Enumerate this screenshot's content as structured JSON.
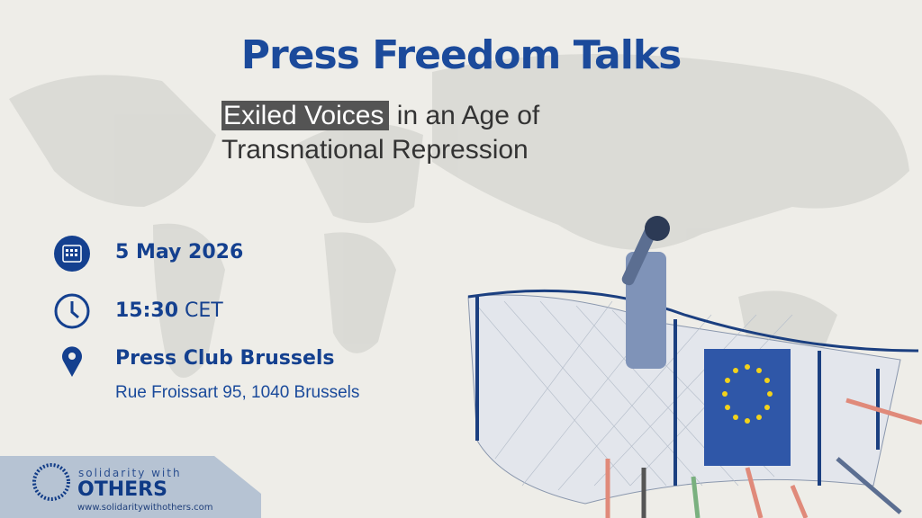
{
  "header": {
    "title": "Press Freedom Talks",
    "subtitle_highlight": "Exiled Voices",
    "subtitle_rest1": " in an Age of",
    "subtitle_line2": "Transnational Repression"
  },
  "details": {
    "date": {
      "icon": "calendar-icon",
      "value": "5 May 2026"
    },
    "time": {
      "icon": "clock-icon",
      "time": "15:30",
      "zone": " CET"
    },
    "location": {
      "icon": "map-pin-icon",
      "venue": "Press Club Brussels",
      "address": "Rue Froissart 95, 1040 Brussels"
    }
  },
  "logo": {
    "line1": "solidarity with",
    "line2": "OTHERS",
    "url": "www.solidaritywithothers.com"
  },
  "colors": {
    "brand": "#1b4a9b",
    "highlight": "#545454",
    "background": "#eeede8",
    "eu_flag": "#2f57a8",
    "eu_star": "#f2d21b"
  }
}
